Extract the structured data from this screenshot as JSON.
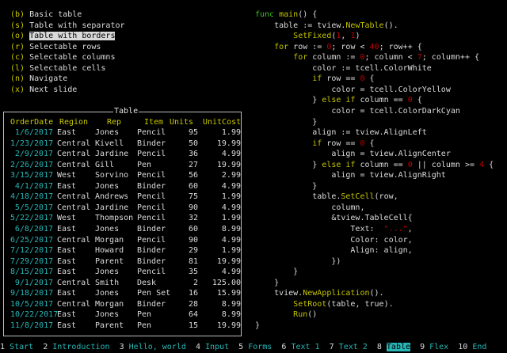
{
  "menu": {
    "selected_index": 2,
    "items": [
      {
        "key": "(b)",
        "label": "Basic table"
      },
      {
        "key": "(s)",
        "label": "Table with separator"
      },
      {
        "key": "(o)",
        "label": "Table with borders"
      },
      {
        "key": "(r)",
        "label": "Selectable rows"
      },
      {
        "key": "(c)",
        "label": "Selectable columns"
      },
      {
        "key": "(l)",
        "label": "Selectable cells"
      },
      {
        "key": "(n)",
        "label": "Navigate"
      },
      {
        "key": "(x)",
        "label": "Next slide"
      }
    ]
  },
  "table": {
    "title": "Table",
    "headers": [
      "OrderDate",
      "Region",
      "Rep",
      "Item",
      "Units",
      "UnitCost"
    ],
    "rows": [
      [
        "1/6/2017",
        "East",
        "Jones",
        "Pencil",
        "95",
        "1.99"
      ],
      [
        "1/23/2017",
        "Central",
        "Kivell",
        "Binder",
        "50",
        "19.99"
      ],
      [
        "2/9/2017",
        "Central",
        "Jardine",
        "Pencil",
        "36",
        "4.99"
      ],
      [
        "2/26/2017",
        "Central",
        "Gill",
        "Pen",
        "27",
        "19.99"
      ],
      [
        "3/15/2017",
        "West",
        "Sorvino",
        "Pencil",
        "56",
        "2.99"
      ],
      [
        "4/1/2017",
        "East",
        "Jones",
        "Binder",
        "60",
        "4.99"
      ],
      [
        "4/18/2017",
        "Central",
        "Andrews",
        "Pencil",
        "75",
        "1.99"
      ],
      [
        "5/5/2017",
        "Central",
        "Jardine",
        "Pencil",
        "90",
        "4.99"
      ],
      [
        "5/22/2017",
        "West",
        "Thompson",
        "Pencil",
        "32",
        "1.99"
      ],
      [
        "6/8/2017",
        "East",
        "Jones",
        "Binder",
        "60",
        "8.99"
      ],
      [
        "6/25/2017",
        "Central",
        "Morgan",
        "Pencil",
        "90",
        "4.99"
      ],
      [
        "7/12/2017",
        "East",
        "Howard",
        "Binder",
        "29",
        "1.99"
      ],
      [
        "7/29/2017",
        "East",
        "Parent",
        "Binder",
        "81",
        "19.99"
      ],
      [
        "8/15/2017",
        "East",
        "Jones",
        "Pencil",
        "35",
        "4.99"
      ],
      [
        "9/1/2017",
        "Central",
        "Smith",
        "Desk",
        "2",
        "125.00"
      ],
      [
        "9/18/2017",
        "East",
        "Jones",
        "Pen Set",
        "16",
        "15.99"
      ],
      [
        "10/5/2017",
        "Central",
        "Morgan",
        "Binder",
        "28",
        "8.99"
      ],
      [
        "10/22/2017",
        "East",
        "Jones",
        "Pen",
        "64",
        "8.99"
      ],
      [
        "11/8/2017",
        "East",
        "Parent",
        "Pen",
        "15",
        "19.99"
      ]
    ]
  },
  "code": [
    [
      [
        "func",
        "func"
      ],
      [
        " ",
        ""
      ],
      [
        "main",
        "fn"
      ],
      [
        "() {",
        ""
      ]
    ],
    [
      [
        "    table := tview.",
        ""
      ],
      [
        "NewTable",
        "fn"
      ],
      [
        "().",
        ""
      ]
    ],
    [
      [
        "        ",
        ""
      ],
      [
        "SetFixed",
        "fn"
      ],
      [
        "(",
        ""
      ],
      [
        "1",
        "num"
      ],
      [
        ", ",
        ""
      ],
      [
        "1",
        "num"
      ],
      [
        ")",
        ""
      ]
    ],
    [
      [
        "    ",
        ""
      ],
      [
        "for",
        "kw"
      ],
      [
        " row := ",
        ""
      ],
      [
        "0",
        "num"
      ],
      [
        "; row < ",
        ""
      ],
      [
        "40",
        "num"
      ],
      [
        "; row++ {",
        ""
      ]
    ],
    [
      [
        "        ",
        ""
      ],
      [
        "for",
        "kw"
      ],
      [
        " column := ",
        ""
      ],
      [
        "0",
        "num"
      ],
      [
        "; column < ",
        ""
      ],
      [
        "7",
        "num"
      ],
      [
        "; column++ {",
        ""
      ]
    ],
    [
      [
        "            color := tcell.ColorWhite",
        ""
      ]
    ],
    [
      [
        "            ",
        ""
      ],
      [
        "if",
        "kw"
      ],
      [
        " row == ",
        ""
      ],
      [
        "0",
        "num"
      ],
      [
        " {",
        ""
      ]
    ],
    [
      [
        "                color = tcell.ColorYellow",
        ""
      ]
    ],
    [
      [
        "            } ",
        ""
      ],
      [
        "else if",
        "kw"
      ],
      [
        " column == ",
        ""
      ],
      [
        "0",
        "num"
      ],
      [
        " {",
        ""
      ]
    ],
    [
      [
        "                color = tcell.ColorDarkCyan",
        ""
      ]
    ],
    [
      [
        "            }",
        ""
      ]
    ],
    [
      [
        "            align := tview.AlignLeft",
        ""
      ]
    ],
    [
      [
        "            ",
        ""
      ],
      [
        "if",
        "kw"
      ],
      [
        " row == ",
        ""
      ],
      [
        "0",
        "num"
      ],
      [
        " {",
        ""
      ]
    ],
    [
      [
        "                align = tview.AlignCenter",
        ""
      ]
    ],
    [
      [
        "            } ",
        ""
      ],
      [
        "else if",
        "kw"
      ],
      [
        " column == ",
        ""
      ],
      [
        "0",
        "num"
      ],
      [
        " || column >= ",
        ""
      ],
      [
        "4",
        "num"
      ],
      [
        " {",
        ""
      ]
    ],
    [
      [
        "                align = tview.AlignRight",
        ""
      ]
    ],
    [
      [
        "            }",
        ""
      ]
    ],
    [
      [
        "            table.",
        ""
      ],
      [
        "SetCell",
        "fn"
      ],
      [
        "(row,",
        ""
      ]
    ],
    [
      [
        "                column,",
        ""
      ]
    ],
    [
      [
        "                &tview.TableCell{",
        ""
      ]
    ],
    [
      [
        "                    Text:  ",
        ""
      ],
      [
        "\"...\"",
        "str"
      ],
      [
        ",",
        ""
      ]
    ],
    [
      [
        "                    Color: color,",
        ""
      ]
    ],
    [
      [
        "                    Align: align,",
        ""
      ]
    ],
    [
      [
        "                })",
        ""
      ]
    ],
    [
      [
        "        }",
        ""
      ]
    ],
    [
      [
        "    }",
        ""
      ]
    ],
    [
      [
        "    tview.",
        ""
      ],
      [
        "NewApplication",
        "fn"
      ],
      [
        "().",
        ""
      ]
    ],
    [
      [
        "        ",
        ""
      ],
      [
        "SetRoot",
        "fn"
      ],
      [
        "(table, true).",
        ""
      ]
    ],
    [
      [
        "        ",
        ""
      ],
      [
        "Run",
        "fn"
      ],
      [
        "()",
        ""
      ]
    ],
    [
      [
        "}",
        ""
      ]
    ]
  ],
  "slides": {
    "active_index": 7,
    "items": [
      {
        "num": "1",
        "label": "Start"
      },
      {
        "num": "2",
        "label": "Introduction"
      },
      {
        "num": "3",
        "label": "Hello, world"
      },
      {
        "num": "4",
        "label": "Input"
      },
      {
        "num": "5",
        "label": "Forms"
      },
      {
        "num": "6",
        "label": "Text 1"
      },
      {
        "num": "7",
        "label": "Text 2"
      },
      {
        "num": "8",
        "label": "Table"
      },
      {
        "num": "9",
        "label": "Flex"
      },
      {
        "num": "10",
        "label": "End"
      }
    ]
  },
  "colors": {
    "background": "#000000",
    "accent_cyan": "#27b5b5",
    "accent_yellow": "#c8c800",
    "number_red": "#c20000",
    "keyword_green": "#3fbf1f"
  }
}
